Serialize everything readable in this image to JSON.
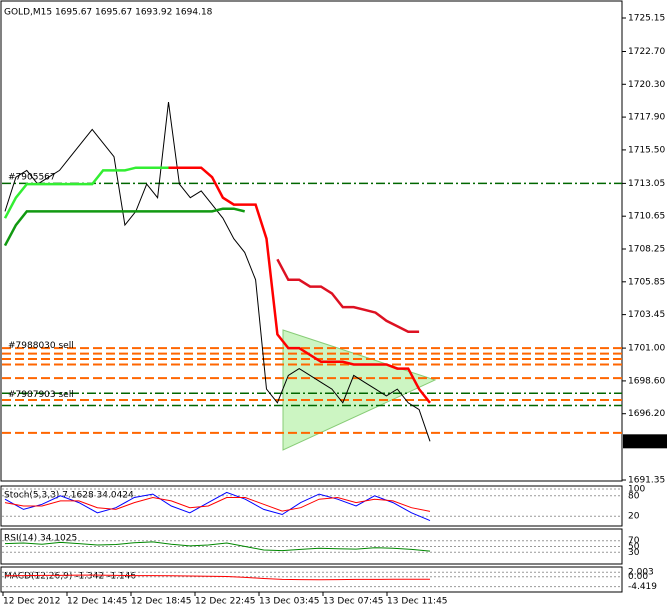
{
  "chart_data": {
    "type": "line",
    "title": "GOLD,M15  1695.67 1695.67 1693.92 1694.18",
    "last_price": 1694.18,
    "ylim": [
      1691.35,
      1725.15
    ],
    "yticks": [
      1725.15,
      {
        "value": 1722.7,
        "label": "1722.70"
      },
      {
        "value": 1720.3,
        "label": "1720.30"
      },
      {
        "value": 1717.9,
        "label": "1717.90"
      },
      {
        "value": 1715.5,
        "label": "1715.50"
      },
      1713.05,
      1710.65,
      1708.25,
      1705.85,
      1703.45,
      {
        "value": 1701.0,
        "label": "1701.00"
      },
      {
        "value": 1698.6,
        "label": "1698.60"
      },
      {
        "value": 1696.2,
        "label": "1696.20"
      },
      1691.35
    ],
    "x_labels": [
      "12 Dec 2012",
      "12 Dec 14:45",
      "12 Dec 18:45",
      "12 Dec 22:45",
      "13 Dec 03:45",
      "13 Dec 07:45",
      "13 Dec 11:45"
    ],
    "series": [
      {
        "color": "#000000",
        "values": [
          1711,
          1713.5,
          1714,
          1713,
          1713.5,
          1714,
          1715,
          1716,
          1717,
          1716,
          1715,
          1710,
          1711,
          1713,
          1712,
          1719,
          1713,
          1712,
          1712.5,
          1711.5,
          1710.5,
          1709,
          1708,
          1706,
          1698,
          1697,
          1699,
          1699.5,
          1699,
          1698.5,
          1698,
          1697,
          1699,
          1698.5,
          1698,
          1697.5,
          1698,
          1697,
          1696.5,
          1694.18
        ]
      },
      {
        "color": "#ff0000",
        "values": [
          null,
          null,
          null,
          null,
          null,
          null,
          null,
          null,
          null,
          null,
          null,
          null,
          null,
          1714.2,
          1714.2,
          1714.2,
          1714.2,
          1714.2,
          1714.2,
          1713.5,
          1712,
          1711.5,
          1711.5,
          1711.5,
          1709,
          1702,
          1701,
          1701,
          1700.5,
          1700,
          1700,
          1700,
          1699.8,
          1699.8,
          1699.8,
          1699.8,
          1699.5,
          1699.5,
          1698,
          1697
        ]
      },
      {
        "color": "#dd1122",
        "values": [
          null,
          null,
          null,
          null,
          null,
          null,
          null,
          null,
          null,
          null,
          null,
          null,
          null,
          null,
          null,
          null,
          null,
          null,
          null,
          null,
          null,
          null,
          null,
          null,
          null,
          1707.5,
          1706,
          1706,
          1705.5,
          1705.5,
          1705,
          1704,
          1704,
          1703.8,
          1703.6,
          1703,
          1702.6,
          1702.2,
          1702.2,
          null
        ]
      },
      {
        "color": "#33ee33",
        "values": [
          1710.5,
          1712,
          1713,
          1713,
          1713,
          1713,
          1713,
          1713,
          1713,
          1714,
          1714,
          1714,
          1714.2,
          1714.2,
          1714.2,
          1714.2,
          null,
          null,
          null,
          null,
          null,
          null,
          null,
          null,
          null,
          null,
          null,
          null,
          null,
          null,
          null,
          null,
          null,
          null,
          null,
          null,
          null,
          null,
          null,
          null
        ]
      },
      {
        "color": "#119911",
        "values": [
          1708.5,
          1710,
          1711,
          1711,
          1711,
          1711,
          1711,
          1711,
          1711,
          1711,
          1711,
          1711,
          1711,
          1711,
          1711,
          1711,
          1711,
          1711,
          1711,
          1711,
          1711.2,
          1711.2,
          1711,
          null,
          null,
          null,
          null,
          null,
          null,
          null,
          null,
          null,
          null,
          null,
          null,
          null,
          null,
          null,
          null,
          null
        ]
      }
    ],
    "levels": [
      {
        "value": 1713.05,
        "color": "#006600"
      },
      {
        "value": 1701.0,
        "color": "#ff6600"
      },
      {
        "value": 1700.6,
        "color": "#ff6600"
      },
      {
        "value": 1700.2,
        "color": "#ff6600"
      },
      {
        "value": 1699.8,
        "color": "#ff6600"
      },
      {
        "value": 1698.8,
        "color": "#ff6600"
      },
      {
        "value": 1697.7,
        "color": "#006600"
      },
      {
        "value": 1697.2,
        "color": "#ff6600"
      },
      {
        "value": 1696.8,
        "color": "#006600"
      },
      {
        "value": 1694.8,
        "color": "#ff6600"
      }
    ],
    "orders": [
      {
        "label": "#7905567",
        "value": 1713.5
      },
      {
        "label": "#7988030 sell",
        "value": 1701.2
      },
      {
        "label": "#7987903 sell",
        "value": 1697.6
      }
    ],
    "panels": [
      {
        "title": "Stoch(5,3,3) 7.1628 34.0424",
        "ylim": [
          0,
          100
        ],
        "yticks": [
          100,
          80,
          20
        ],
        "series": [
          {
            "color": "#0000ff",
            "values": [
              70,
              40,
              55,
              80,
              60,
              30,
              45,
              75,
              85,
              50,
              30,
              60,
              90,
              70,
              40,
              25,
              60,
              85,
              70,
              50,
              80,
              60,
              30,
              7
            ]
          },
          {
            "color": "#ff0000",
            "values": [
              60,
              50,
              50,
              65,
              65,
              45,
              40,
              60,
              75,
              65,
              45,
              50,
              75,
              75,
              55,
              35,
              45,
              70,
              75,
              60,
              70,
              65,
              45,
              34
            ]
          }
        ]
      },
      {
        "title": "RSI(14) 34.1025",
        "ylim": [
          0,
          100
        ],
        "yticks": [
          70,
          50,
          30
        ],
        "series": [
          {
            "color": "#008800",
            "values": [
              60,
              62,
              58,
              64,
              60,
              55,
              57,
              63,
              66,
              58,
              52,
              55,
              62,
              50,
              38,
              36,
              40,
              44,
              42,
              41,
              46,
              44,
              40,
              34
            ]
          }
        ]
      },
      {
        "title": "MACD(12,26,9) -1.342 -1.146",
        "ylim": [
          -5.5,
          3
        ],
        "yticks": [
          2.003,
          {
            "value": 0,
            "label": "0.00"
          },
          -4.419
        ],
        "series": [
          {
            "color": "#ff0000",
            "values": [
              0.4,
              0.5,
              0.6,
              0.6,
              0.7,
              0.7,
              0.6,
              0.5,
              0.5,
              0.4,
              0.3,
              0.2,
              0.1,
              -0.3,
              -0.8,
              -1.2,
              -1.3,
              -1.4,
              -1.3,
              -1.2,
              -1.2,
              -1.1,
              -1.1,
              -1.146
            ]
          }
        ]
      }
    ]
  }
}
